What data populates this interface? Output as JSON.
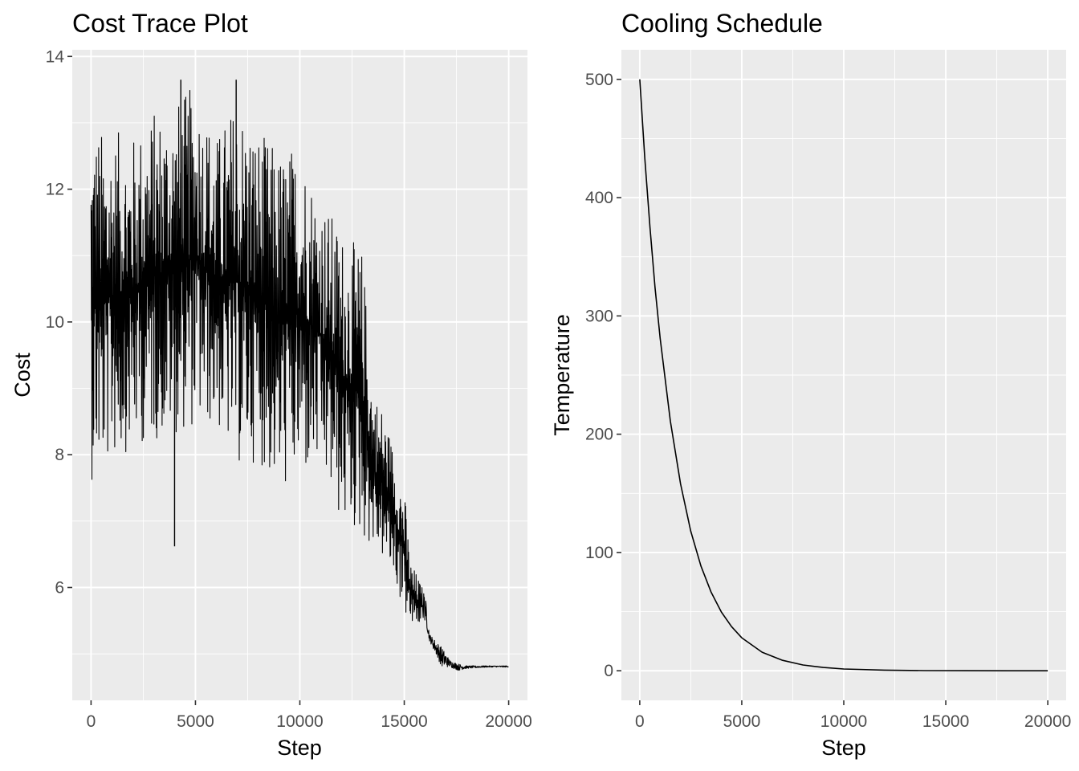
{
  "chart_data": [
    {
      "type": "line",
      "title": "Cost Trace Plot",
      "xlabel": "Step",
      "ylabel": "Cost",
      "xlim": [
        -900,
        20900
      ],
      "ylim": [
        4.3,
        14.1
      ],
      "x_ticks": [
        0,
        5000,
        10000,
        15000,
        20000
      ],
      "x_tick_labels": [
        "0",
        "5000",
        "10000",
        "15000",
        "20000"
      ],
      "y_ticks": [
        6,
        8,
        10,
        12,
        14
      ],
      "y_tick_labels": [
        "6",
        "8",
        "10",
        "12",
        "14"
      ],
      "grid": true,
      "series": [
        {
          "envelope": {
            "step": [
              0,
              500,
              1000,
              2000,
              3000,
              4000,
              5000,
              6000,
              7000,
              8000,
              9000,
              10000,
              11000,
              12000,
              12600,
              13000,
              13500,
              14000,
              14500,
              15000,
              15300,
              15600,
              16000,
              16200,
              16800,
              17200,
              17600,
              18000,
              19000,
              20000
            ],
            "upper": [
              13.2,
              12.9,
              12.9,
              12.8,
              13.2,
              13.3,
              13.6,
              12.8,
              13.4,
              12.9,
              12.6,
              12.7,
              11.9,
              11.4,
              11.2,
              11.1,
              9.0,
              8.7,
              8.1,
              7.5,
              6.4,
              6.2,
              5.9,
              5.3,
              5.1,
              4.9,
              4.85,
              4.82,
              4.82,
              4.82
            ],
            "lower": [
              7.6,
              7.7,
              7.9,
              8.1,
              8.2,
              8.3,
              8.4,
              8.4,
              7.8,
              7.9,
              7.4,
              7.6,
              7.7,
              6.9,
              6.8,
              6.7,
              6.6,
              6.4,
              6.1,
              5.6,
              5.4,
              5.4,
              5.5,
              5.2,
              4.8,
              4.8,
              4.75,
              4.78,
              4.8,
              4.8
            ]
          },
          "outliers": [
            {
              "x": 4000,
              "y": 6.62
            },
            {
              "x": 4300,
              "y": 13.65
            },
            {
              "x": 6950,
              "y": 13.65
            }
          ]
        }
      ]
    },
    {
      "type": "line",
      "title": "Cooling Schedule",
      "xlabel": "Step",
      "ylabel": "Temperature",
      "xlim": [
        -900,
        20900
      ],
      "ylim": [
        -25,
        525
      ],
      "x_ticks": [
        0,
        5000,
        10000,
        15000,
        20000
      ],
      "x_tick_labels": [
        "0",
        "5000",
        "10000",
        "15000",
        "20000"
      ],
      "y_ticks": [
        0,
        100,
        200,
        300,
        400,
        500
      ],
      "y_tick_labels": [
        "0",
        "100",
        "200",
        "300",
        "400",
        "500"
      ],
      "grid": true,
      "series": [
        {
          "x": [
            0,
            250,
            500,
            750,
            1000,
            1500,
            2000,
            2500,
            3000,
            3500,
            4000,
            4500,
            5000,
            6000,
            7000,
            8000,
            9000,
            10000,
            12000,
            14000,
            16000,
            18000,
            20000
          ],
          "y": [
            500,
            433,
            375,
            324,
            281,
            211,
            158,
            118,
            88.5,
            66.4,
            49.7,
            37.3,
            27.9,
            15.7,
            8.8,
            4.9,
            2.8,
            1.5,
            0.5,
            0.15,
            0.05,
            0.01,
            0.0
          ]
        }
      ]
    }
  ]
}
